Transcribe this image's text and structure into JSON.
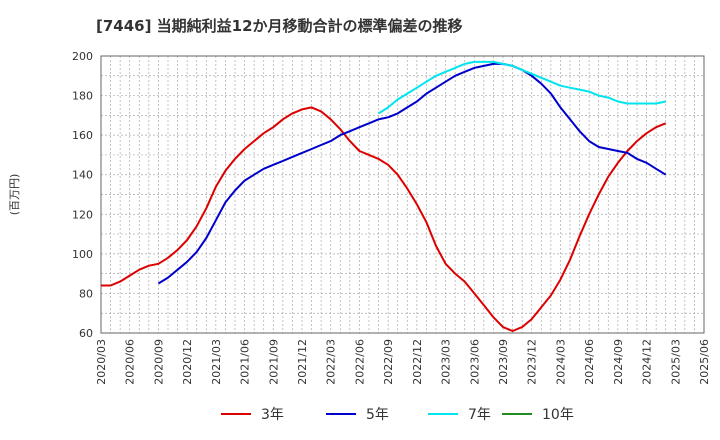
{
  "chart_data": {
    "type": "line",
    "title": "[7446]  当期純利益12か月移動合計の標準偏差の推移",
    "ylabel": "(百万円)",
    "xlabel": "",
    "ylim": [
      60,
      200
    ],
    "yticks": [
      60,
      80,
      100,
      120,
      140,
      160,
      180,
      200
    ],
    "grid": true,
    "legend_position": "bottom",
    "xtick_labels": [
      "2020/03",
      "2020/06",
      "2020/09",
      "2020/12",
      "2021/03",
      "2021/06",
      "2021/09",
      "2021/12",
      "2022/03",
      "2022/06",
      "2022/09",
      "2022/12",
      "2023/03",
      "2023/06",
      "2023/09",
      "2023/12",
      "2024/03",
      "2024/06",
      "2024/09",
      "2024/12",
      "2025/03",
      "2025/06"
    ],
    "series": [
      {
        "name": "3年",
        "color": "#dd0000",
        "points": [
          [
            "2020/03",
            84
          ],
          [
            "2020/04",
            84
          ],
          [
            "2020/05",
            86
          ],
          [
            "2020/06",
            89
          ],
          [
            "2020/07",
            92
          ],
          [
            "2020/08",
            94
          ],
          [
            "2020/09",
            95
          ],
          [
            "2020/10",
            98
          ],
          [
            "2020/11",
            102
          ],
          [
            "2020/12",
            107
          ],
          [
            "2021/01",
            114
          ],
          [
            "2021/02",
            123
          ],
          [
            "2021/03",
            134
          ],
          [
            "2021/04",
            142
          ],
          [
            "2021/05",
            148
          ],
          [
            "2021/06",
            153
          ],
          [
            "2021/07",
            157
          ],
          [
            "2021/08",
            161
          ],
          [
            "2021/09",
            164
          ],
          [
            "2021/10",
            168
          ],
          [
            "2021/11",
            171
          ],
          [
            "2021/12",
            173
          ],
          [
            "2022/01",
            174
          ],
          [
            "2022/02",
            172
          ],
          [
            "2022/03",
            168
          ],
          [
            "2022/04",
            163
          ],
          [
            "2022/05",
            157
          ],
          [
            "2022/06",
            152
          ],
          [
            "2022/07",
            150
          ],
          [
            "2022/08",
            148
          ],
          [
            "2022/09",
            145
          ],
          [
            "2022/10",
            140
          ],
          [
            "2022/11",
            133
          ],
          [
            "2022/12",
            125
          ],
          [
            "2023/01",
            116
          ],
          [
            "2023/02",
            104
          ],
          [
            "2023/03",
            95
          ],
          [
            "2023/04",
            90
          ],
          [
            "2023/05",
            86
          ],
          [
            "2023/06",
            80
          ],
          [
            "2023/07",
            74
          ],
          [
            "2023/08",
            68
          ],
          [
            "2023/09",
            63
          ],
          [
            "2023/10",
            61
          ],
          [
            "2023/11",
            63
          ],
          [
            "2023/12",
            67
          ],
          [
            "2024/01",
            73
          ],
          [
            "2024/02",
            79
          ],
          [
            "2024/03",
            87
          ],
          [
            "2024/04",
            97
          ],
          [
            "2024/05",
            109
          ],
          [
            "2024/06",
            120
          ],
          [
            "2024/07",
            130
          ],
          [
            "2024/08",
            139
          ],
          [
            "2024/09",
            146
          ],
          [
            "2024/10",
            152
          ],
          [
            "2024/11",
            157
          ],
          [
            "2024/12",
            161
          ],
          [
            "2025/01",
            164
          ],
          [
            "2025/02",
            166
          ]
        ]
      },
      {
        "name": "5年",
        "color": "#0000cc",
        "points": [
          [
            "2020/09",
            85
          ],
          [
            "2020/10",
            88
          ],
          [
            "2020/11",
            92
          ],
          [
            "2020/12",
            96
          ],
          [
            "2021/01",
            101
          ],
          [
            "2021/02",
            108
          ],
          [
            "2021/03",
            117
          ],
          [
            "2021/04",
            126
          ],
          [
            "2021/05",
            132
          ],
          [
            "2021/06",
            137
          ],
          [
            "2021/07",
            140
          ],
          [
            "2021/08",
            143
          ],
          [
            "2021/09",
            145
          ],
          [
            "2021/10",
            147
          ],
          [
            "2021/11",
            149
          ],
          [
            "2021/12",
            151
          ],
          [
            "2022/01",
            153
          ],
          [
            "2022/02",
            155
          ],
          [
            "2022/03",
            157
          ],
          [
            "2022/04",
            160
          ],
          [
            "2022/05",
            162
          ],
          [
            "2022/06",
            164
          ],
          [
            "2022/07",
            166
          ],
          [
            "2022/08",
            168
          ],
          [
            "2022/09",
            169
          ],
          [
            "2022/10",
            171
          ],
          [
            "2022/11",
            174
          ],
          [
            "2022/12",
            177
          ],
          [
            "2023/01",
            181
          ],
          [
            "2023/02",
            184
          ],
          [
            "2023/03",
            187
          ],
          [
            "2023/04",
            190
          ],
          [
            "2023/05",
            192
          ],
          [
            "2023/06",
            194
          ],
          [
            "2023/07",
            195
          ],
          [
            "2023/08",
            196
          ],
          [
            "2023/09",
            196
          ],
          [
            "2023/10",
            195
          ],
          [
            "2023/11",
            193
          ],
          [
            "2023/12",
            190
          ],
          [
            "2024/01",
            186
          ],
          [
            "2024/02",
            181
          ],
          [
            "2024/03",
            174
          ],
          [
            "2024/04",
            168
          ],
          [
            "2024/05",
            162
          ],
          [
            "2024/06",
            157
          ],
          [
            "2024/07",
            154
          ],
          [
            "2024/08",
            153
          ],
          [
            "2024/09",
            152
          ],
          [
            "2024/10",
            151
          ],
          [
            "2024/11",
            148
          ],
          [
            "2024/12",
            146
          ],
          [
            "2025/01",
            143
          ],
          [
            "2025/02",
            140
          ]
        ]
      },
      {
        "name": "7年",
        "color": "#00e5ee",
        "points": [
          [
            "2022/08",
            171
          ],
          [
            "2022/09",
            174
          ],
          [
            "2022/10",
            178
          ],
          [
            "2022/11",
            181
          ],
          [
            "2022/12",
            184
          ],
          [
            "2023/01",
            187
          ],
          [
            "2023/02",
            190
          ],
          [
            "2023/03",
            192
          ],
          [
            "2023/04",
            194
          ],
          [
            "2023/05",
            196
          ],
          [
            "2023/06",
            197
          ],
          [
            "2023/07",
            197
          ],
          [
            "2023/08",
            197
          ],
          [
            "2023/09",
            196
          ],
          [
            "2023/10",
            195
          ],
          [
            "2023/11",
            193
          ],
          [
            "2023/12",
            191
          ],
          [
            "2024/01",
            189
          ],
          [
            "2024/02",
            187
          ],
          [
            "2024/03",
            185
          ],
          [
            "2024/04",
            184
          ],
          [
            "2024/05",
            183
          ],
          [
            "2024/06",
            182
          ],
          [
            "2024/07",
            180
          ],
          [
            "2024/08",
            179
          ],
          [
            "2024/09",
            177
          ],
          [
            "2024/10",
            176
          ],
          [
            "2024/11",
            176
          ],
          [
            "2024/12",
            176
          ],
          [
            "2025/01",
            176
          ],
          [
            "2025/02",
            177
          ]
        ]
      },
      {
        "name": "10年",
        "color": "#228b22",
        "points": []
      }
    ]
  }
}
